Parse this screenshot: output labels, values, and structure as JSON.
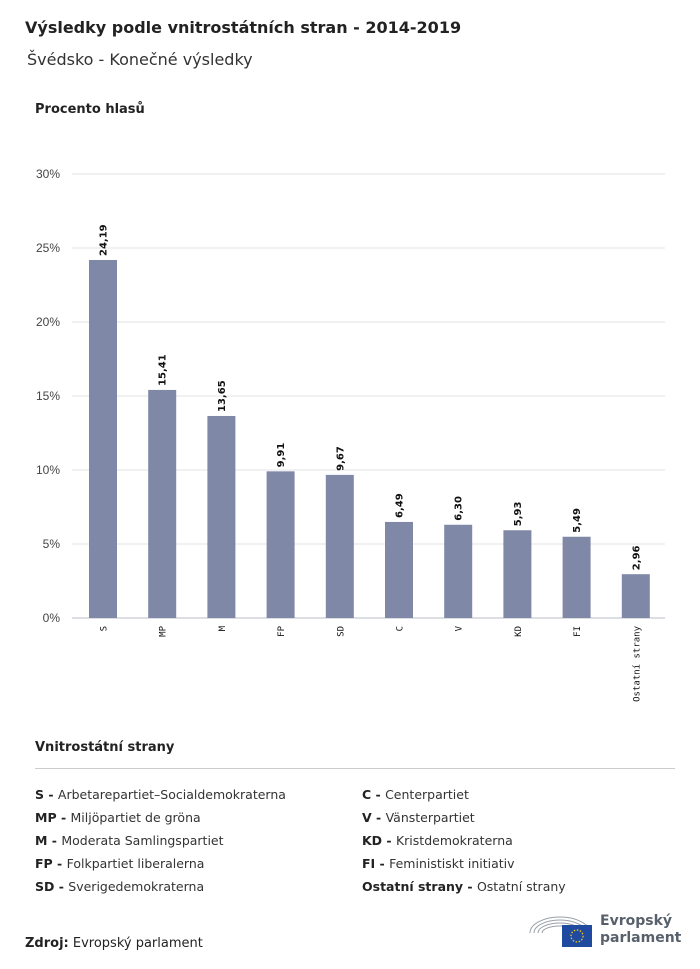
{
  "header": {
    "title": "Výsledky podle vnitrostátních stran - 2014-2019",
    "subtitle": "Švédsko - Konečné výsledky"
  },
  "chart_data": {
    "type": "bar",
    "ylabel": "Procento hlasů",
    "categories": [
      "S",
      "MP",
      "M",
      "FP",
      "SD",
      "C",
      "V",
      "KD",
      "FI",
      "Ostatní strany"
    ],
    "values": [
      24.19,
      15.41,
      13.65,
      9.91,
      9.67,
      6.49,
      6.3,
      5.93,
      5.49,
      2.96
    ],
    "data_labels": [
      "24,19",
      "15,41",
      "13,65",
      "9,91",
      "9,67",
      "6,49",
      "6,30",
      "5,93",
      "5,49",
      "2,96"
    ],
    "ylim": [
      0,
      30
    ],
    "yticks": [
      "0%",
      "5%",
      "10%",
      "15%",
      "20%",
      "25%",
      "30%"
    ],
    "grid": true,
    "bar_color": "#7f88a6"
  },
  "legend": {
    "title": "Vnitrostátní strany",
    "items": [
      {
        "abbr": "S -",
        "name": "Arbetarepartiet–Socialdemokraterna"
      },
      {
        "abbr": "MP -",
        "name": "Miljöpartiet de gröna"
      },
      {
        "abbr": "M -",
        "name": "Moderata Samlingspartiet"
      },
      {
        "abbr": "FP -",
        "name": "Folkpartiet liberalerna"
      },
      {
        "abbr": "SD -",
        "name": "Sverigedemokraterna"
      },
      {
        "abbr": "C -",
        "name": "Centerpartiet"
      },
      {
        "abbr": "V -",
        "name": "Vänsterpartiet"
      },
      {
        "abbr": "KD -",
        "name": "Kristdemokraterna"
      },
      {
        "abbr": "FI -",
        "name": "Feministiskt initiativ"
      },
      {
        "abbr": "Ostatní strany -",
        "name": "Ostatní strany"
      }
    ]
  },
  "footer": {
    "source_label": "Zdroj:",
    "source": "Evropský parlament",
    "logo_text": "Evropský parlament",
    "logo_line1": "Evropský",
    "logo_line2": "parlament"
  }
}
